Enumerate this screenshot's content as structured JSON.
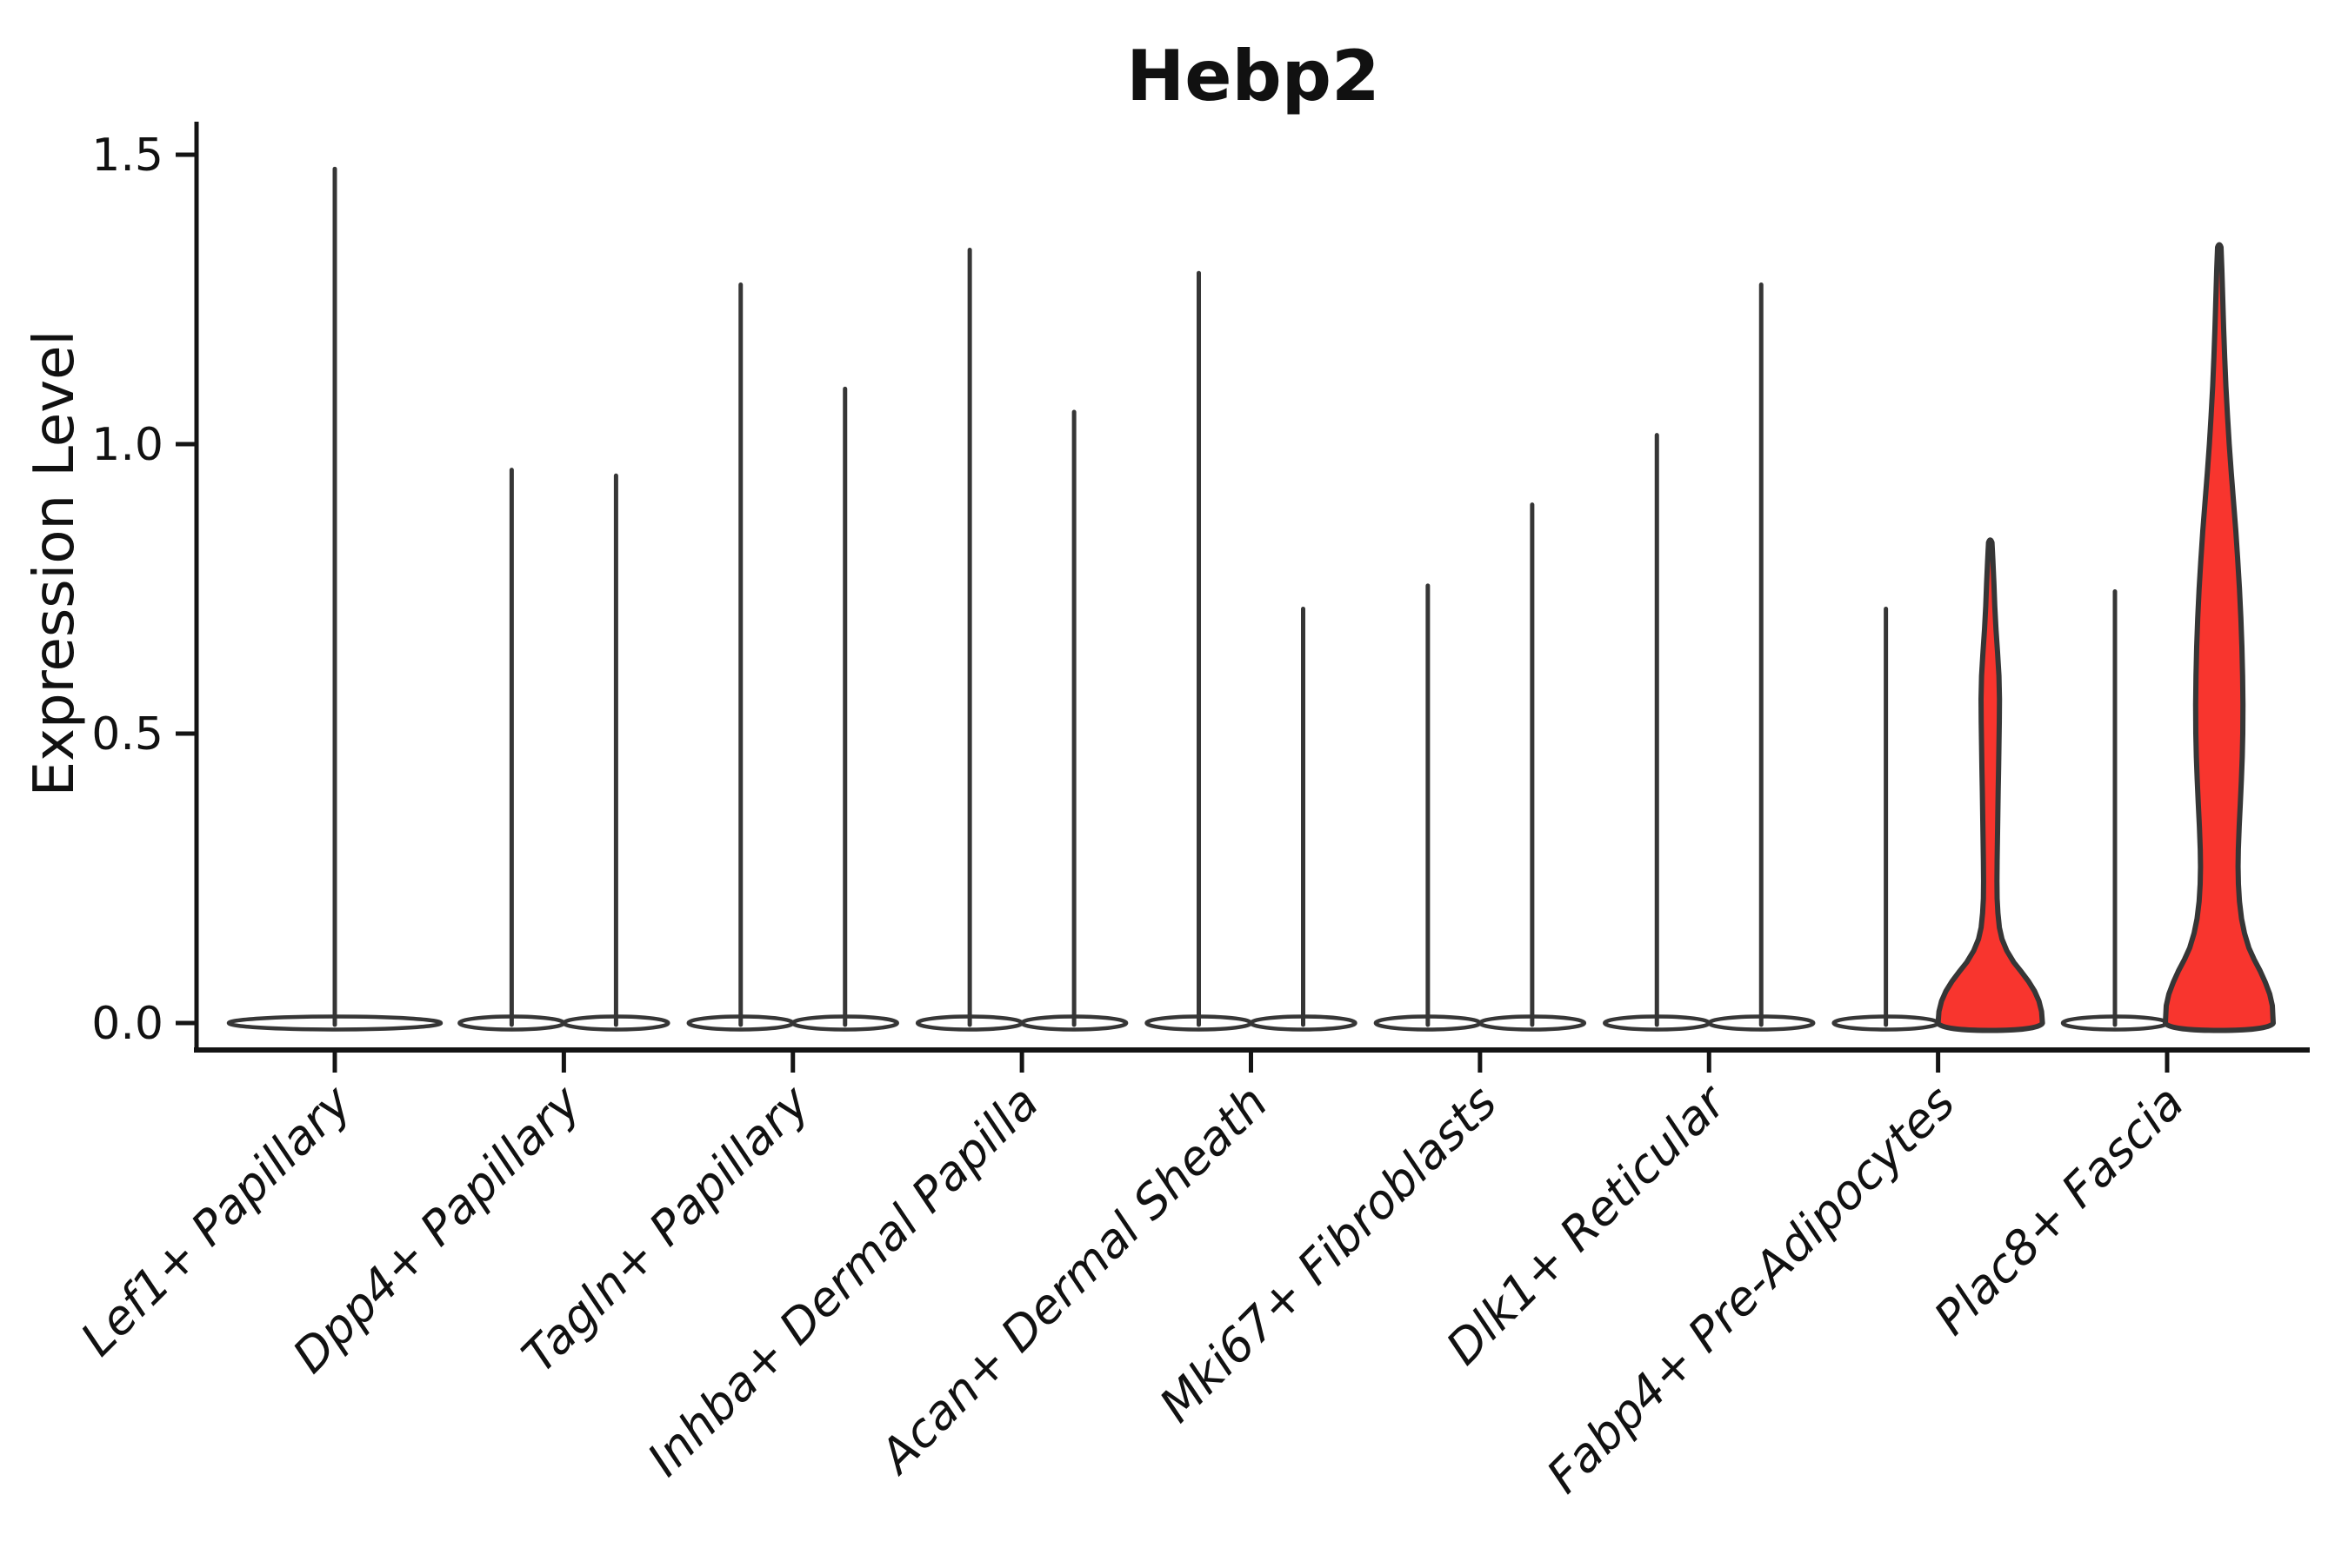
{
  "chart_data": {
    "type": "violin",
    "title": "Hebp2",
    "ylabel": "Expression Level",
    "xlabel": "",
    "ylim": [
      0,
      1.58
    ],
    "grid": false,
    "legend": "none",
    "ytick_labels": [
      "1.5",
      "1.0",
      "0.5",
      "0.0"
    ],
    "ytick_values": [
      1.5,
      1.0,
      0.5,
      0.0
    ],
    "categories": [
      "Lef1+ Papillary",
      "Dpp4+ Papillary",
      "Tagln+ Papillary",
      "Inhba+ Dermal Papilla",
      "Acan+ Dermal Sheath",
      "Mki67+ Fibroblasts",
      "Dlk1+ Reticular",
      "Fabp4+ Pre-Adipocytes",
      "Plac8+ Fascia"
    ],
    "colors": {
      "background": "#ffffff",
      "violin_fill": "#ffffff",
      "highlight_fill": "#f8352e",
      "outline": "#363636",
      "axis": "#141414",
      "text": "#111111"
    },
    "violins": [
      {
        "category": "Lef1+ Papillary",
        "position": "center",
        "max": 1.48,
        "fill": "white",
        "width": "wide"
      },
      {
        "category": "Dpp4+ Papillary",
        "position": "left",
        "max": 0.96,
        "fill": "white"
      },
      {
        "category": "Dpp4+ Papillary",
        "position": "right",
        "max": 0.95,
        "fill": "white"
      },
      {
        "category": "Tagln+ Papillary",
        "position": "left",
        "max": 1.28,
        "fill": "white"
      },
      {
        "category": "Tagln+ Papillary",
        "position": "right",
        "max": 1.1,
        "fill": "white"
      },
      {
        "category": "Inhba+ Dermal Papilla",
        "position": "left",
        "max": 1.34,
        "fill": "white"
      },
      {
        "category": "Inhba+ Dermal Papilla",
        "position": "right",
        "max": 1.06,
        "fill": "white"
      },
      {
        "category": "Acan+ Dermal Sheath",
        "position": "left",
        "max": 1.3,
        "fill": "white"
      },
      {
        "category": "Acan+ Dermal Sheath",
        "position": "right",
        "max": 0.72,
        "fill": "white"
      },
      {
        "category": "Mki67+ Fibroblasts",
        "position": "left",
        "max": 0.76,
        "fill": "white"
      },
      {
        "category": "Mki67+ Fibroblasts",
        "position": "right",
        "max": 0.9,
        "fill": "white"
      },
      {
        "category": "Dlk1+ Reticular",
        "position": "left",
        "max": 1.02,
        "fill": "white"
      },
      {
        "category": "Dlk1+ Reticular",
        "position": "right",
        "max": 1.28,
        "fill": "white"
      },
      {
        "category": "Fabp4+ Pre-Adipocytes",
        "position": "left",
        "max": 0.72,
        "fill": "white"
      },
      {
        "category": "Fabp4+ Pre-Adipocytes",
        "position": "right",
        "max": 0.83,
        "fill": "red",
        "profile": [
          [
            0.83,
            2
          ],
          [
            0.8,
            3
          ],
          [
            0.76,
            4.2
          ],
          [
            0.72,
            5.2
          ],
          [
            0.68,
            6.6
          ],
          [
            0.64,
            8.4
          ],
          [
            0.6,
            10.0
          ],
          [
            0.56,
            10.6
          ],
          [
            0.52,
            10.4
          ],
          [
            0.48,
            10.0
          ],
          [
            0.44,
            9.6
          ],
          [
            0.4,
            9.1
          ],
          [
            0.36,
            8.7
          ],
          [
            0.32,
            8.3
          ],
          [
            0.28,
            7.9
          ],
          [
            0.245,
            7.7
          ],
          [
            0.215,
            7.9
          ],
          [
            0.19,
            8.8
          ],
          [
            0.165,
            10.5
          ],
          [
            0.145,
            13.5
          ],
          [
            0.125,
            19
          ],
          [
            0.105,
            27
          ],
          [
            0.088,
            36
          ],
          [
            0.072,
            44
          ],
          [
            0.055,
            51
          ],
          [
            0.038,
            56
          ],
          [
            0.02,
            59
          ],
          [
            0.0,
            60
          ]
        ]
      },
      {
        "category": "Plac8+ Fascia",
        "position": "left",
        "max": 0.75,
        "fill": "white"
      },
      {
        "category": "Plac8+ Fascia",
        "position": "right",
        "max": 1.34,
        "fill": "red",
        "profile": [
          [
            1.34,
            2
          ],
          [
            1.3,
            3
          ],
          [
            1.25,
            4
          ],
          [
            1.2,
            5
          ],
          [
            1.15,
            6.2
          ],
          [
            1.1,
            7.6
          ],
          [
            1.05,
            9.4
          ],
          [
            1.0,
            11.4
          ],
          [
            0.95,
            13.8
          ],
          [
            0.9,
            16.4
          ],
          [
            0.85,
            19
          ],
          [
            0.8,
            21.2
          ],
          [
            0.75,
            23.2
          ],
          [
            0.7,
            24.8
          ],
          [
            0.65,
            26
          ],
          [
            0.6,
            26.8
          ],
          [
            0.55,
            27.2
          ],
          [
            0.5,
            27
          ],
          [
            0.46,
            26.4
          ],
          [
            0.42,
            25.4
          ],
          [
            0.38,
            24.2
          ],
          [
            0.34,
            22.9
          ],
          [
            0.3,
            21.9
          ],
          [
            0.27,
            21.6
          ],
          [
            0.24,
            22.0
          ],
          [
            0.21,
            23.2
          ],
          [
            0.18,
            25.6
          ],
          [
            0.155,
            29
          ],
          [
            0.13,
            34
          ],
          [
            0.11,
            40
          ],
          [
            0.09,
            47
          ],
          [
            0.07,
            53
          ],
          [
            0.05,
            58
          ],
          [
            0.03,
            61
          ],
          [
            0.0,
            62
          ]
        ]
      }
    ]
  }
}
